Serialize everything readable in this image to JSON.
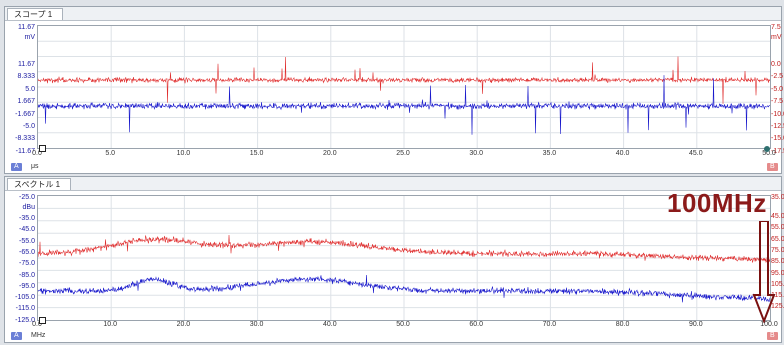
{
  "scope": {
    "tab_label": "スコープ 1",
    "left_unit": "mV",
    "right_unit": "mV",
    "left_ticks": [
      "11.67",
      "8.333",
      "5.0",
      "1.667",
      "-1.667",
      "-5.0",
      "-8.333",
      "-11.67"
    ],
    "left_top_value": "11.67",
    "right_ticks": [
      "0.0",
      "-2.5",
      "-5.0",
      "-7.5",
      "-10.0",
      "-12.5",
      "-15.0",
      "-17.5"
    ],
    "right_top_value": "7.5",
    "x_ticks": [
      "0.0",
      "5.0",
      "10.0",
      "15.0",
      "20.0",
      "25.0",
      "30.0",
      "35.0",
      "40.0",
      "45.0",
      "50.0"
    ],
    "x_unit_chip": "μs",
    "left_chip": "A",
    "right_chip": "B",
    "colors": {
      "ch_a": "#1a1acc",
      "ch_b": "#e03030",
      "grid": "#d6dbe0"
    }
  },
  "spectrum": {
    "tab_label": "スペクトル 1",
    "left_unit": "dBu",
    "left_top_value": "-25.0",
    "left_ticks": [
      "-35.0",
      "-45.0",
      "-55.0",
      "-65.0",
      "-75.0",
      "-85.0",
      "-95.0",
      "-105.0",
      "-115.0",
      "-125.0"
    ],
    "right_top_value": "35.0",
    "right_ticks": [
      "45.0",
      "55.0",
      "65.0",
      "75.0",
      "85.0",
      "95.0",
      "105.0",
      "115.0",
      "125.0"
    ],
    "x_ticks": [
      "0.0",
      "10.0",
      "20.0",
      "30.0",
      "40.0",
      "50.0",
      "60.0",
      "70.0",
      "80.0",
      "90.0",
      "100.0"
    ],
    "x_unit_chip": "MHz",
    "left_chip": "A",
    "right_chip": "B",
    "annotation": "100MHz",
    "colors": {
      "annotation": "#8b1a1a",
      "arrow": "#7a1010"
    }
  }
}
